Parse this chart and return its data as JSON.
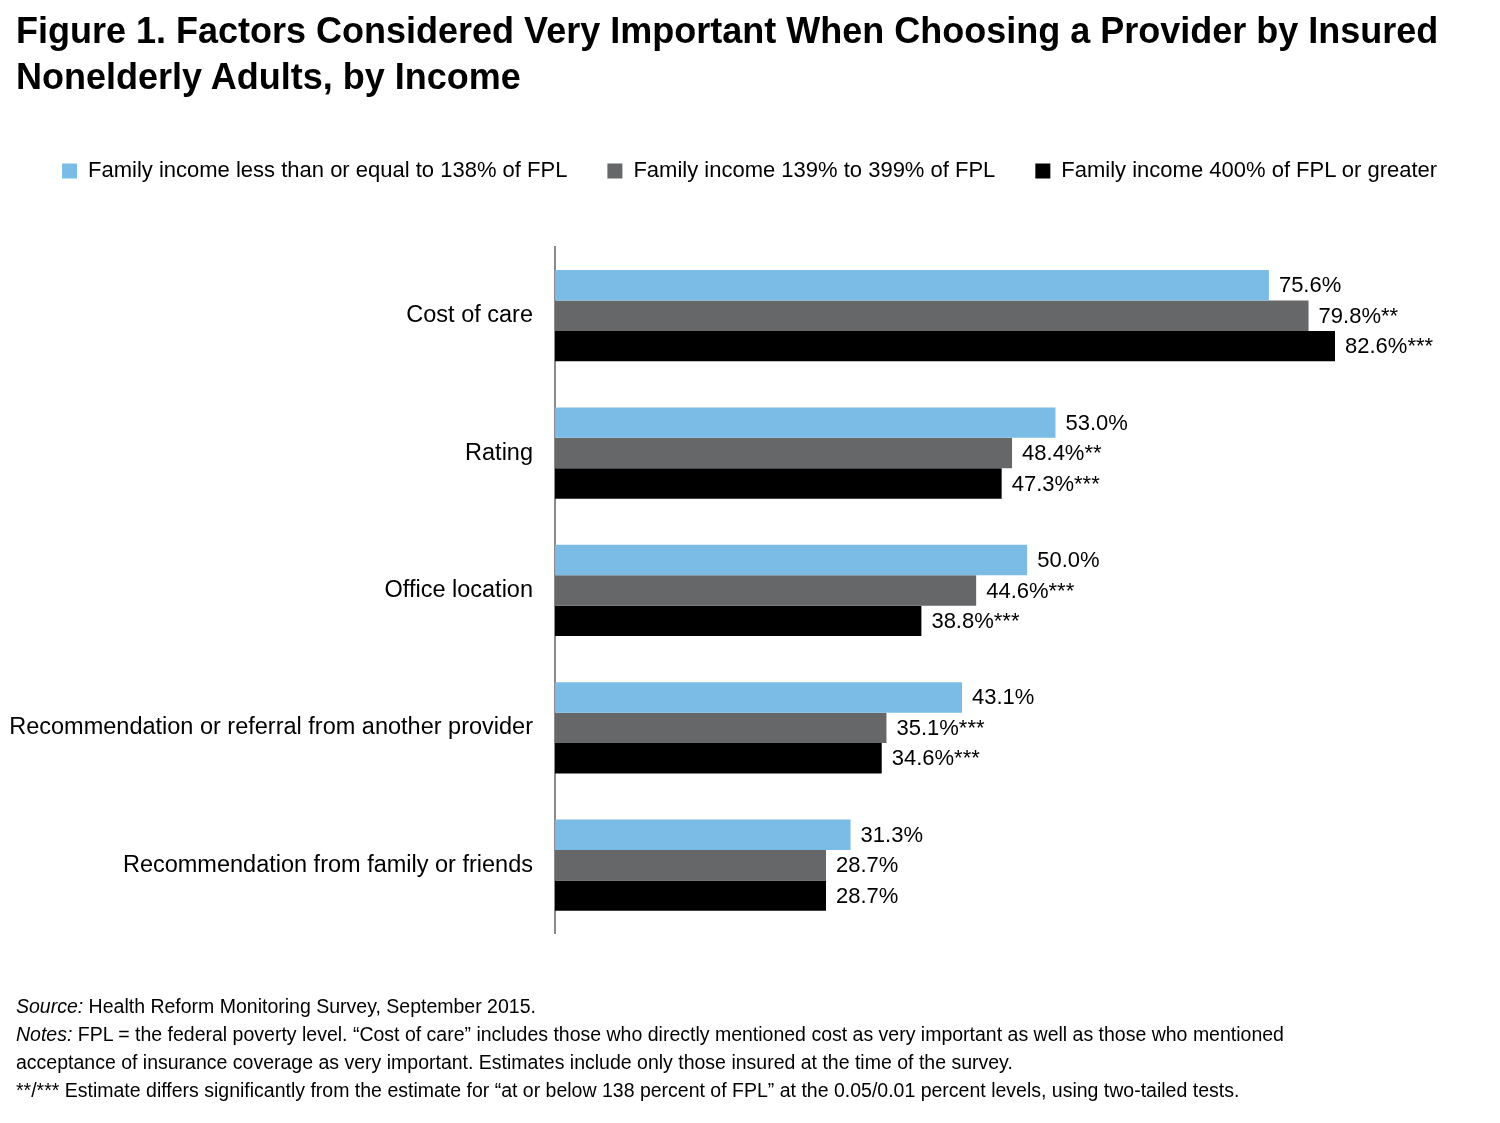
{
  "chart_data": {
    "type": "bar",
    "orientation": "horizontal",
    "title": "Figure 1. Factors Considered Very Important When Choosing a Provider by Insured Nonelderly Adults, by Income",
    "categories": [
      "Cost of care",
      "Rating",
      "Office location",
      "Recommendation or referral from another provider",
      "Recommendation from family or friends"
    ],
    "series": [
      {
        "name": "Family income less than or equal to 138% of FPL",
        "color": "#7abce6",
        "values": [
          75.6,
          53.0,
          50.0,
          43.1,
          31.3
        ],
        "value_labels": [
          "75.6%",
          "53.0%",
          "50.0%",
          "43.1%",
          "31.3%"
        ]
      },
      {
        "name": "Family income 139% to 399% of FPL",
        "color": "#666769",
        "values": [
          79.8,
          48.4,
          44.6,
          35.1,
          28.7
        ],
        "value_labels": [
          "79.8%**",
          "48.4%**",
          "44.6%***",
          "35.1%***",
          "28.7%"
        ]
      },
      {
        "name": "Family income 400% of FPL or greater",
        "color": "#000000",
        "values": [
          82.6,
          47.3,
          38.8,
          34.6,
          28.7
        ],
        "value_labels": [
          "82.6%***",
          "47.3%***",
          "38.8%***",
          "34.6%***",
          "28.7%"
        ]
      }
    ],
    "legend": "top",
    "grid": false,
    "tick_labels": "y",
    "annotations": [
      "Source: Health Reform Monitoring Survey, September 2015.",
      "Notes: FPL = the federal poverty level. “Cost of care” includes those who directly mentioned cost as very important as well as those who mentioned acceptance of insurance coverage as very important. Estimates include only those insured at the time of the survey.",
      "**/*** Estimate differs significantly from the estimate for “at or below 138 percent of FPL” at the 0.05/0.01 percent levels, using two-tailed tests."
    ]
  }
}
